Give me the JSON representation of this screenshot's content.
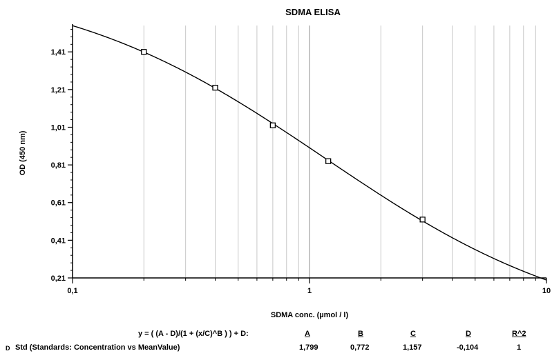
{
  "chart_data": {
    "type": "line",
    "title": "SDMA ELISA",
    "xlabel": "SDMA conc. (µmol / l)",
    "ylabel": "OD (450 nm)",
    "x_scale": "log",
    "xlim": [
      0.1,
      10
    ],
    "ylim": [
      0.21,
      1.55
    ],
    "x_ticks": [
      {
        "value": 0.1,
        "label": "0,1"
      },
      {
        "value": 1,
        "label": "1"
      },
      {
        "value": 10,
        "label": "10"
      }
    ],
    "y_ticks": [
      {
        "value": 0.21,
        "label": "0,21"
      },
      {
        "value": 0.41,
        "label": "0,41"
      },
      {
        "value": 0.61,
        "label": "0,61"
      },
      {
        "value": 0.81,
        "label": "0,81"
      },
      {
        "value": 1.01,
        "label": "1,01"
      },
      {
        "value": 1.21,
        "label": "1,21"
      },
      {
        "value": 1.41,
        "label": "1,41"
      }
    ],
    "grid": "vertical",
    "fit": {
      "model": "4PL",
      "A": 1.799,
      "B": 0.772,
      "C": 1.157,
      "D": -0.104
    },
    "standards": [
      {
        "x": 0.2,
        "y": 1.41
      },
      {
        "x": 0.4,
        "y": 1.22
      },
      {
        "x": 0.7,
        "y": 1.02
      },
      {
        "x": 1.2,
        "y": 0.83
      },
      {
        "x": 3.0,
        "y": 0.52
      }
    ]
  },
  "fit_table": {
    "equation": "y = ( (A - D)/(1 + (x/C)^B ) ) + D:",
    "headers": [
      "A",
      "B",
      "C",
      "D",
      "R^2"
    ],
    "row_marker": "D",
    "row_label": "Std (Standards: Concentration vs MeanValue)",
    "values": [
      "1,799",
      "0,772",
      "1,157",
      "-0,104",
      "1"
    ]
  }
}
